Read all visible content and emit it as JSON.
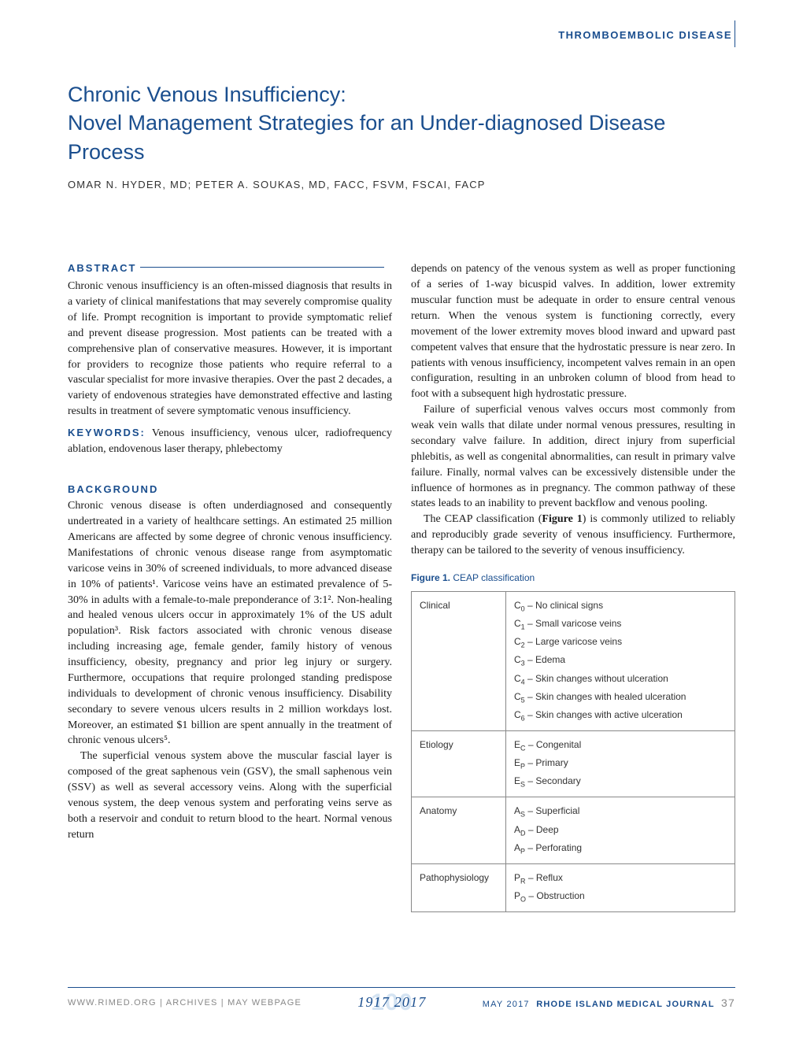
{
  "colors": {
    "primary": "#1a4e8e",
    "text": "#1a1a1a",
    "muted": "#888888",
    "border": "#888888",
    "logo_bg": "#d4e3f2"
  },
  "header": {
    "section_label": "THROMBOEMBOLIC DISEASE"
  },
  "title": {
    "line1": "Chronic Venous Insufficiency:",
    "line2": "Novel Management Strategies for an Under-diagnosed Disease Process"
  },
  "authors": "OMAR N. HYDER, MD; PETER A. SOUKAS, MD, FACC, FSVM, FSCAI, FACP",
  "abstract": {
    "heading": "ABSTRACT",
    "body": "Chronic venous insufficiency is an often-missed diagnosis that results in a variety of clinical manifestations that may severely compromise quality of life. Prompt recognition is important to provide symptomatic relief and prevent disease progression. Most patients can be treated with a comprehensive plan of conservative measures. However, it is important for providers to recognize those patients who require referral to a vascular specialist for more invasive therapies. Over the past 2 decades, a variety of endovenous strategies have demonstrated effective and lasting results in treatment of severe symptomatic venous insufficiency."
  },
  "keywords": {
    "heading": "KEYWORDS:",
    "body": " Venous insufficiency, venous ulcer, radiofrequency ablation, endovenous laser therapy, phlebectomy"
  },
  "background": {
    "heading": "BACKGROUND",
    "para1": "Chronic venous disease is often underdiagnosed and consequently undertreated in a variety of healthcare settings. An estimated 25 million Americans are affected by some degree of chronic venous insufficiency. Manifestations of chronic venous disease range from asymptomatic varicose veins in 30% of screened individuals, to more advanced disease in 10% of patients¹. Varicose veins have an estimated prevalence of 5-30% in adults with a female-to-male preponderance of 3:1². Non-healing and healed venous ulcers occur in approximately 1% of the US adult population³. Risk factors associated with chronic venous disease including increasing age, female gender, family history of venous insufficiency, obesity, pregnancy and prior leg injury or surgery. Furthermore, occupations that require prolonged standing predispose individuals to development of chronic venous insufficiency. Disability secondary to severe venous ulcers results in 2 million workdays lost. Moreover, an estimated $1 billion are spent annually in the treatment of chronic venous ulcers⁵.",
    "para2": "The superficial venous system above the muscular fascial layer is composed of the great saphenous vein (GSV), the small saphenous vein (SSV) as well as several accessory veins. Along with the superficial venous system, the deep venous system and perforating veins serve as both a reservoir and conduit to return blood to the heart. Normal venous return"
  },
  "col2": {
    "para1": "depends on patency of the venous system as well as proper functioning of a series of 1-way bicuspid valves. In addition, lower extremity muscular function must be adequate in order to ensure central venous return. When the venous system is functioning correctly, every movement of the lower extremity moves blood inward and upward past competent valves that ensure that the hydrostatic pressure is near zero. In patients with venous insufficiency, incompetent valves remain in an open configuration, resulting in an unbroken column of blood from head to foot with a subsequent high hydrostatic pressure.",
    "para2": "Failure of superficial venous valves occurs most commonly from weak vein walls that dilate under normal venous pressures, resulting in secondary valve failure. In addition, direct injury from superficial phlebitis, as well as congenital abnormalities, can result in primary valve failure. Finally, normal valves can be excessively distensible under the influence of hormones as in pregnancy. The common pathway of these states leads to an inability to prevent backflow and venous pooling.",
    "para3_a": "The CEAP classification (",
    "para3_fig": "Figure 1",
    "para3_b": ") is commonly utilized to reliably and reproducibly grade severity of venous insufficiency. Furthermore, therapy can be tailored to the severity of venous insufficiency."
  },
  "figure": {
    "label": "Figure 1.",
    "caption": " CEAP classification",
    "rows": [
      {
        "label": "Clinical",
        "items": [
          {
            "sub": "0",
            "text": " – No clinical signs"
          },
          {
            "sub": "1",
            "text": " – Small varicose veins"
          },
          {
            "sub": "2",
            "text": " – Large varicose veins"
          },
          {
            "sub": "3",
            "text": " – Edema"
          },
          {
            "sub": "4",
            "text": " – Skin changes without ulceration"
          },
          {
            "sub": "5",
            "text": " – Skin changes with healed ulceration"
          },
          {
            "sub": "6",
            "text": " – Skin changes with active ulceration"
          }
        ],
        "prefix": "C"
      },
      {
        "label": "Etiology",
        "items": [
          {
            "sub": "C",
            "text": " – Congenital"
          },
          {
            "sub": "P",
            "text": " – Primary"
          },
          {
            "sub": "S",
            "text": " – Secondary"
          }
        ],
        "prefix": "E"
      },
      {
        "label": "Anatomy",
        "items": [
          {
            "sub": "S",
            "text": " – Superficial"
          },
          {
            "sub": "D",
            "text": " – Deep"
          },
          {
            "sub": "P",
            "text": " – Perforating"
          }
        ],
        "prefix": "A"
      },
      {
        "label": "Pathophysiology",
        "items": [
          {
            "sub": "R",
            "text": " – Reflux"
          },
          {
            "sub": "O",
            "text": " – Obstruction"
          }
        ],
        "prefix": "P"
      }
    ]
  },
  "footer": {
    "left": "WWW.RIMED.ORG | ARCHIVES | MAY WEBPAGE",
    "logo_years": "1917 2017",
    "logo_number": "100",
    "right_date": "MAY 2017",
    "right_journal": "RHODE ISLAND MEDICAL JOURNAL",
    "right_page": "37"
  }
}
